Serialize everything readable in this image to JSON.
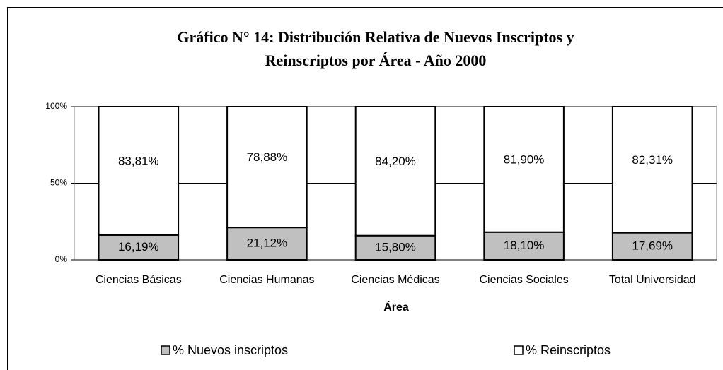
{
  "chart_data": {
    "type": "stacked_bar_100",
    "title": "Gráfico N° 14: Distribución Relativa de Nuevos Inscriptos y Reinscriptos por Área - Año 2000",
    "x_label": "Área",
    "categories": [
      "Ciencias Básicas",
      "Ciencias Humanas",
      "Ciencias Médicas",
      "Ciencias Sociales",
      "Total Universidad"
    ],
    "series": [
      {
        "name": "% Nuevos inscriptos",
        "color": "#c0c0c0",
        "values": [
          16.19,
          21.12,
          15.8,
          18.1,
          17.69
        ],
        "value_labels": [
          "16,19%",
          "21,12%",
          "15,80%",
          "18,10%",
          "17,69%"
        ]
      },
      {
        "name": "% Reinscriptos",
        "color": "#ffffff",
        "values": [
          83.81,
          78.88,
          84.2,
          81.9,
          82.31
        ],
        "value_labels": [
          "83,81%",
          "78,88%",
          "84,20%",
          "81,90%",
          "82,31%"
        ]
      }
    ],
    "ylim": [
      0,
      100
    ],
    "yticks": [
      {
        "value": 0,
        "label": "0%"
      },
      {
        "value": 50,
        "label": "50%"
      },
      {
        "value": 100,
        "label": "100%"
      }
    ],
    "grid": true,
    "legend": "bottom"
  }
}
